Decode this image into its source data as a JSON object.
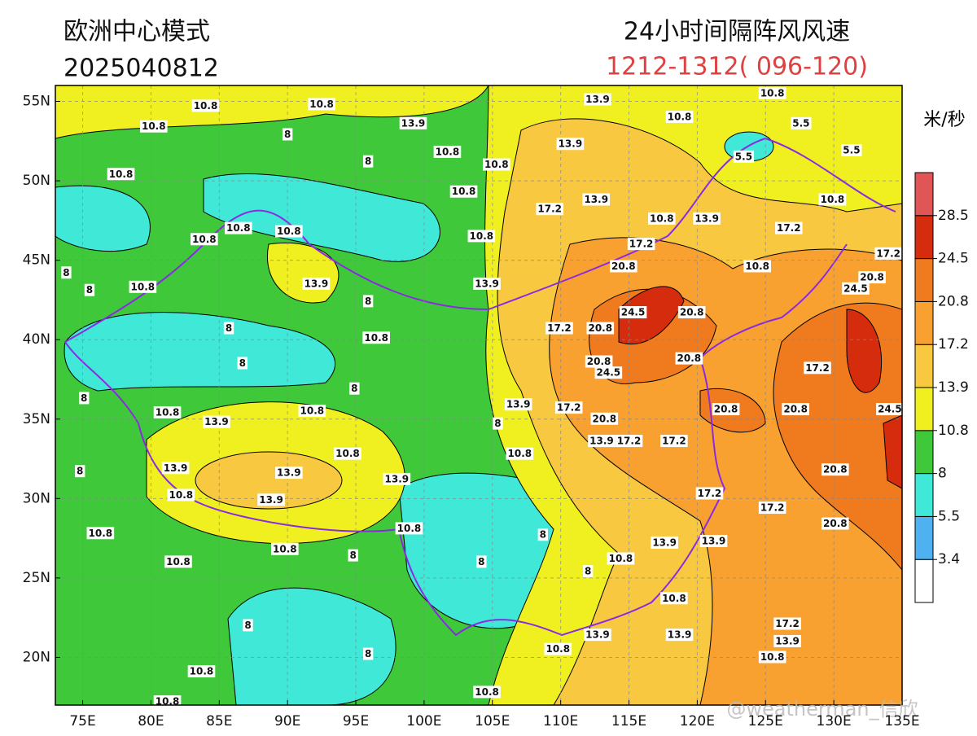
{
  "header": {
    "model": "欧洲中心模式",
    "init_time": "2025040812",
    "title": "24小时间隔阵风风速",
    "period": "1212-1312( 096-120)",
    "watermark": "@weatherman_信欣"
  },
  "map": {
    "lon_range": [
      73,
      135
    ],
    "lat_range": [
      17,
      56
    ],
    "lon_ticks": [
      {
        "value": 75,
        "label": "75E"
      },
      {
        "value": 80,
        "label": "80E"
      },
      {
        "value": 85,
        "label": "85E"
      },
      {
        "value": 90,
        "label": "90E"
      },
      {
        "value": 95,
        "label": "95E"
      },
      {
        "value": 100,
        "label": "100E"
      },
      {
        "value": 105,
        "label": "105E"
      },
      {
        "value": 110,
        "label": "110E"
      },
      {
        "value": 115,
        "label": "115E"
      },
      {
        "value": 120,
        "label": "120E"
      },
      {
        "value": 125,
        "label": "125E"
      },
      {
        "value": 130,
        "label": "130E"
      },
      {
        "value": 135,
        "label": "135E"
      }
    ],
    "lat_ticks": [
      {
        "value": 20,
        "label": "20N"
      },
      {
        "value": 25,
        "label": "25N"
      },
      {
        "value": 30,
        "label": "30N"
      },
      {
        "value": 35,
        "label": "35N"
      },
      {
        "value": 40,
        "label": "40N"
      },
      {
        "value": 45,
        "label": "45N"
      },
      {
        "value": 50,
        "label": "50N"
      },
      {
        "value": 55,
        "label": "55N"
      }
    ],
    "contour_labels": [
      {
        "lon": 84.0,
        "lat": 54.7,
        "value": 10.8
      },
      {
        "lon": 92.5,
        "lat": 54.8,
        "value": 10.8
      },
      {
        "lon": 80.2,
        "lat": 53.4,
        "value": 10.8
      },
      {
        "lon": 99.2,
        "lat": 53.6,
        "value": 13.9
      },
      {
        "lon": 112.7,
        "lat": 55.1,
        "value": 13.9
      },
      {
        "lon": 125.5,
        "lat": 55.5,
        "value": 10.8
      },
      {
        "lon": 127.6,
        "lat": 53.6,
        "value": 5.5
      },
      {
        "lon": 118.7,
        "lat": 54.0,
        "value": 10.8
      },
      {
        "lon": 110.7,
        "lat": 52.3,
        "value": 13.9
      },
      {
        "lon": 101.7,
        "lat": 51.8,
        "value": 10.8
      },
      {
        "lon": 105.3,
        "lat": 51.0,
        "value": 10.8
      },
      {
        "lon": 77.8,
        "lat": 50.4,
        "value": 10.8
      },
      {
        "lon": 123.4,
        "lat": 51.5,
        "value": 5.5
      },
      {
        "lon": 131.3,
        "lat": 51.9,
        "value": 5.5
      },
      {
        "lon": 102.9,
        "lat": 49.3,
        "value": 10.8
      },
      {
        "lon": 112.6,
        "lat": 48.8,
        "value": 13.9
      },
      {
        "lon": 109.2,
        "lat": 48.2,
        "value": 17.2
      },
      {
        "lon": 117.4,
        "lat": 47.6,
        "value": 10.8
      },
      {
        "lon": 120.7,
        "lat": 47.6,
        "value": 13.9
      },
      {
        "lon": 129.9,
        "lat": 48.8,
        "value": 10.8
      },
      {
        "lon": 126.7,
        "lat": 47.0,
        "value": 17.2
      },
      {
        "lon": 86.4,
        "lat": 47.0,
        "value": 10.8
      },
      {
        "lon": 83.9,
        "lat": 46.3,
        "value": 10.8
      },
      {
        "lon": 90.1,
        "lat": 46.8,
        "value": 10.8
      },
      {
        "lon": 104.2,
        "lat": 46.5,
        "value": 10.8
      },
      {
        "lon": 115.9,
        "lat": 46.0,
        "value": 17.2
      },
      {
        "lon": 114.6,
        "lat": 44.6,
        "value": 20.8
      },
      {
        "lon": 124.4,
        "lat": 44.6,
        "value": 10.8
      },
      {
        "lon": 134.0,
        "lat": 45.4,
        "value": 17.2
      },
      {
        "lon": 132.8,
        "lat": 43.9,
        "value": 20.8
      },
      {
        "lon": 131.6,
        "lat": 43.2,
        "value": 24.5
      },
      {
        "lon": 79.4,
        "lat": 43.3,
        "value": 10.8
      },
      {
        "lon": 92.1,
        "lat": 43.5,
        "value": 13.9
      },
      {
        "lon": 104.6,
        "lat": 43.5,
        "value": 13.9
      },
      {
        "lon": 115.3,
        "lat": 41.7,
        "value": 24.5
      },
      {
        "lon": 119.6,
        "lat": 41.7,
        "value": 20.8
      },
      {
        "lon": 109.9,
        "lat": 40.7,
        "value": 17.2
      },
      {
        "lon": 112.9,
        "lat": 40.7,
        "value": 20.8
      },
      {
        "lon": 96.5,
        "lat": 40.1,
        "value": 10.8
      },
      {
        "lon": 112.8,
        "lat": 38.6,
        "value": 20.8
      },
      {
        "lon": 119.4,
        "lat": 38.8,
        "value": 20.8
      },
      {
        "lon": 113.5,
        "lat": 37.9,
        "value": 24.5
      },
      {
        "lon": 128.8,
        "lat": 38.2,
        "value": 17.2
      },
      {
        "lon": 106.9,
        "lat": 35.9,
        "value": 13.9
      },
      {
        "lon": 110.6,
        "lat": 35.7,
        "value": 17.2
      },
      {
        "lon": 81.2,
        "lat": 35.4,
        "value": 10.8
      },
      {
        "lon": 91.8,
        "lat": 35.5,
        "value": 10.8
      },
      {
        "lon": 84.8,
        "lat": 34.8,
        "value": 13.9
      },
      {
        "lon": 122.1,
        "lat": 35.6,
        "value": 20.8
      },
      {
        "lon": 127.2,
        "lat": 35.6,
        "value": 20.8
      },
      {
        "lon": 134.1,
        "lat": 35.6,
        "value": 24.5
      },
      {
        "lon": 113.2,
        "lat": 35.0,
        "value": 20.8
      },
      {
        "lon": 113.0,
        "lat": 33.6,
        "value": 13.9
      },
      {
        "lon": 115.0,
        "lat": 33.6,
        "value": 17.2
      },
      {
        "lon": 118.3,
        "lat": 33.6,
        "value": 17.2
      },
      {
        "lon": 94.4,
        "lat": 32.8,
        "value": 10.8
      },
      {
        "lon": 107.0,
        "lat": 32.8,
        "value": 10.8
      },
      {
        "lon": 81.8,
        "lat": 31.9,
        "value": 13.9
      },
      {
        "lon": 90.1,
        "lat": 31.6,
        "value": 13.9
      },
      {
        "lon": 98.0,
        "lat": 31.2,
        "value": 13.9
      },
      {
        "lon": 130.1,
        "lat": 31.8,
        "value": 20.8
      },
      {
        "lon": 82.2,
        "lat": 30.2,
        "value": 10.8
      },
      {
        "lon": 88.8,
        "lat": 29.9,
        "value": 13.9
      },
      {
        "lon": 120.9,
        "lat": 30.3,
        "value": 17.2
      },
      {
        "lon": 125.5,
        "lat": 29.4,
        "value": 17.2
      },
      {
        "lon": 130.1,
        "lat": 28.4,
        "value": 20.8
      },
      {
        "lon": 76.3,
        "lat": 27.8,
        "value": 10.8
      },
      {
        "lon": 98.9,
        "lat": 28.1,
        "value": 10.8
      },
      {
        "lon": 117.6,
        "lat": 27.2,
        "value": 13.9
      },
      {
        "lon": 121.2,
        "lat": 27.3,
        "value": 13.9
      },
      {
        "lon": 89.8,
        "lat": 26.8,
        "value": 10.8
      },
      {
        "lon": 82.0,
        "lat": 26.0,
        "value": 10.8
      },
      {
        "lon": 114.4,
        "lat": 26.2,
        "value": 10.8
      },
      {
        "lon": 118.3,
        "lat": 23.7,
        "value": 10.8
      },
      {
        "lon": 112.7,
        "lat": 21.4,
        "value": 13.9
      },
      {
        "lon": 118.7,
        "lat": 21.4,
        "value": 13.9
      },
      {
        "lon": 126.6,
        "lat": 22.1,
        "value": 17.2
      },
      {
        "lon": 126.6,
        "lat": 21.0,
        "value": 13.9
      },
      {
        "lon": 83.7,
        "lat": 19.1,
        "value": 10.8
      },
      {
        "lon": 109.8,
        "lat": 20.5,
        "value": 10.8
      },
      {
        "lon": 125.5,
        "lat": 20.0,
        "value": 10.8
      },
      {
        "lon": 104.6,
        "lat": 17.8,
        "value": 10.8
      },
      {
        "lon": 81.2,
        "lat": 17.2,
        "value": 10.8
      },
      {
        "lon": 90.0,
        "lat": 52.9,
        "value": 8
      },
      {
        "lon": 95.9,
        "lat": 51.2,
        "value": 8
      },
      {
        "lon": 73.8,
        "lat": 44.2,
        "value": 8
      },
      {
        "lon": 75.5,
        "lat": 43.1,
        "value": 8
      },
      {
        "lon": 95.9,
        "lat": 42.4,
        "value": 8
      },
      {
        "lon": 85.7,
        "lat": 40.7,
        "value": 8
      },
      {
        "lon": 86.7,
        "lat": 38.5,
        "value": 8
      },
      {
        "lon": 94.9,
        "lat": 36.9,
        "value": 8
      },
      {
        "lon": 75.1,
        "lat": 36.3,
        "value": 8
      },
      {
        "lon": 105.4,
        "lat": 34.7,
        "value": 8
      },
      {
        "lon": 74.8,
        "lat": 31.7,
        "value": 8
      },
      {
        "lon": 108.7,
        "lat": 27.7,
        "value": 8
      },
      {
        "lon": 94.8,
        "lat": 26.4,
        "value": 8
      },
      {
        "lon": 104.2,
        "lat": 26.0,
        "value": 8
      },
      {
        "lon": 87.1,
        "lat": 22.0,
        "value": 8
      },
      {
        "lon": 95.9,
        "lat": 20.2,
        "value": 8
      },
      {
        "lon": 112.0,
        "lat": 25.4,
        "value": 8
      }
    ]
  },
  "legend": {
    "unit": "米/秒",
    "levels": [
      3.4,
      5.5,
      8,
      10.8,
      13.9,
      17.2,
      20.8,
      24.5,
      28.5
    ],
    "colors": [
      "#ffffff",
      "#4fb1f0",
      "#40e8d8",
      "#3ec83a",
      "#f0f020",
      "#f7c840",
      "#f8a030",
      "#f07a1e",
      "#d42c0c",
      "#e05555"
    ]
  }
}
